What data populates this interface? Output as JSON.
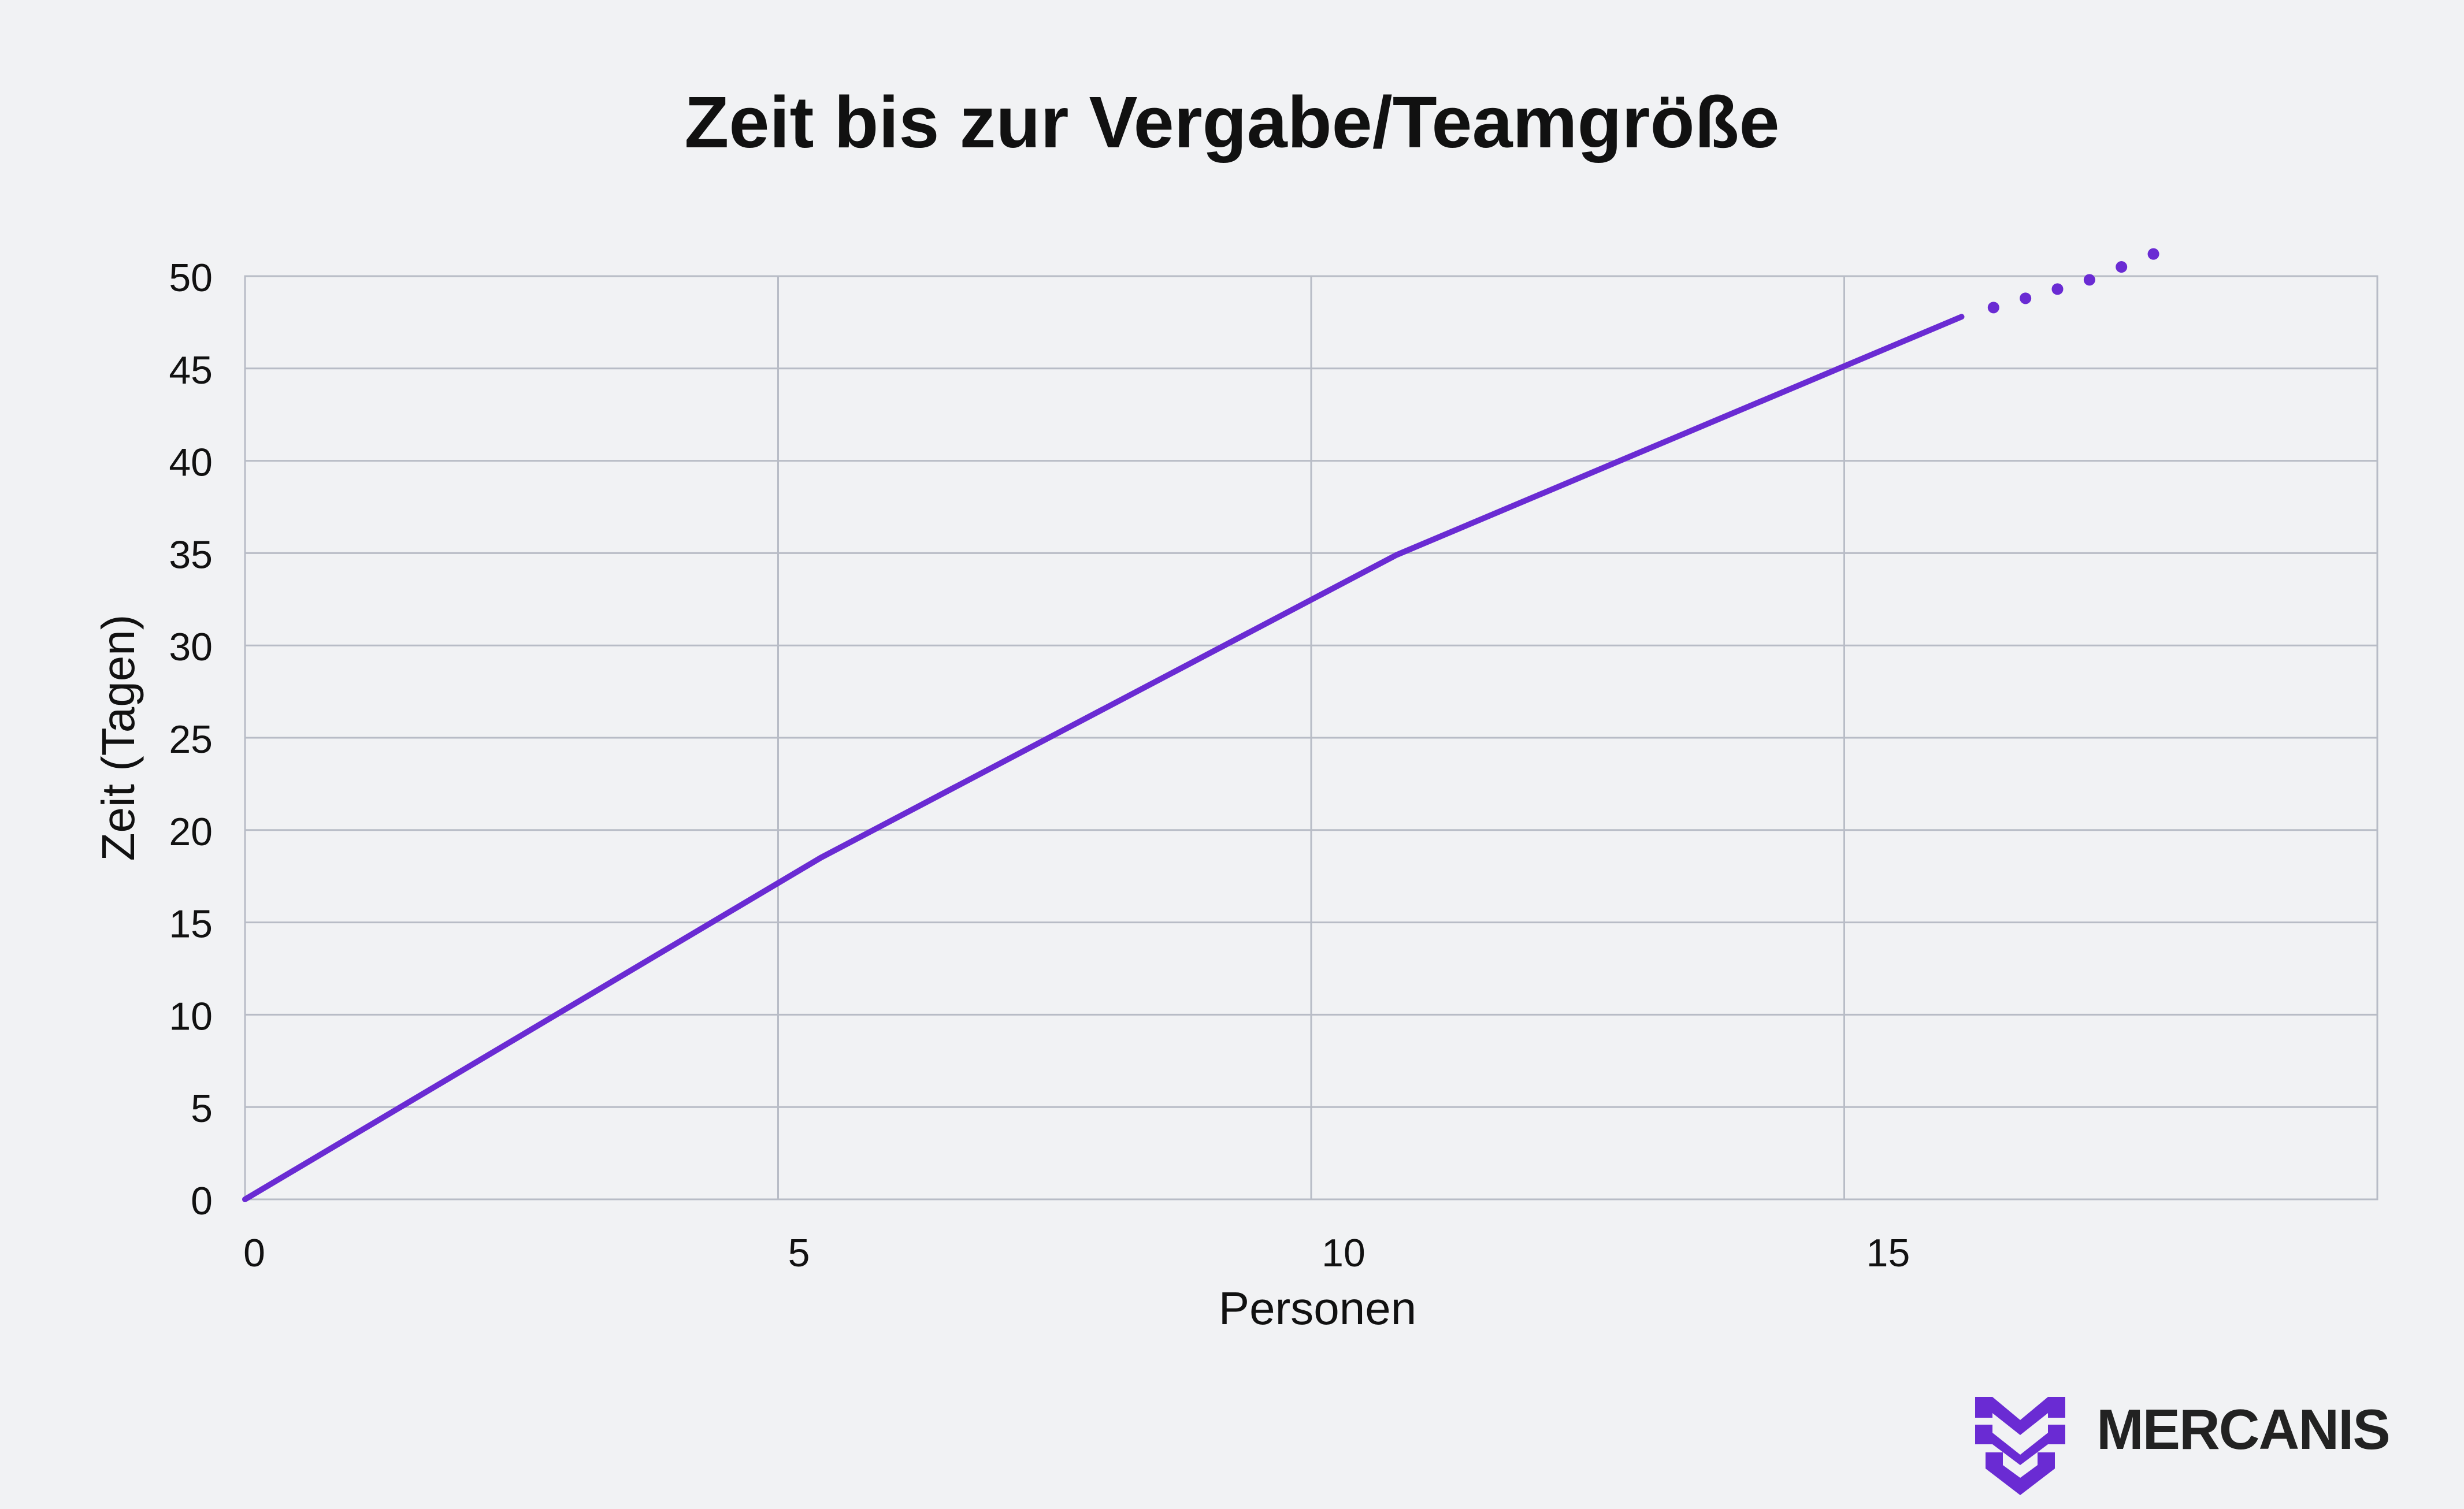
{
  "chart_data": {
    "type": "line",
    "title": "Zeit bis zur Vergabe/Teamgröße",
    "xlabel": "Personen",
    "ylabel": "Zeit (Tagen)",
    "xlim": [
      0,
      20
    ],
    "ylim": [
      0,
      50
    ],
    "x_ticks": [
      0,
      5,
      10,
      15
    ],
    "y_ticks": [
      0,
      5,
      10,
      15,
      20,
      25,
      30,
      35,
      40,
      45,
      50
    ],
    "x_tick_labels": [
      "0",
      "5",
      "10",
      "15"
    ],
    "y_tick_labels": [
      "0",
      "5",
      "10",
      "15",
      "20",
      "25",
      "30",
      "35",
      "40",
      "45",
      "50"
    ],
    "grid": true,
    "legend": "none",
    "series": [
      {
        "color": "#6a2bd3",
        "style": "solid",
        "x": [
          0,
          5.4,
          10.8,
          16.1
        ],
        "y": [
          0,
          18.5,
          34.9,
          47.8
        ]
      },
      {
        "color": "#6a2bd3",
        "style": "dotted",
        "x": [
          16.1,
          16.4,
          16.7,
          17.0,
          17.3,
          17.6,
          17.9
        ],
        "y": [
          47.8,
          48.3,
          48.8,
          49.3,
          49.8,
          50.5,
          51.2
        ]
      }
    ]
  },
  "brand": {
    "name": "MERCANIS",
    "logo_icon": "mercanis-logo-icon",
    "accent": "#6a2bd3"
  }
}
